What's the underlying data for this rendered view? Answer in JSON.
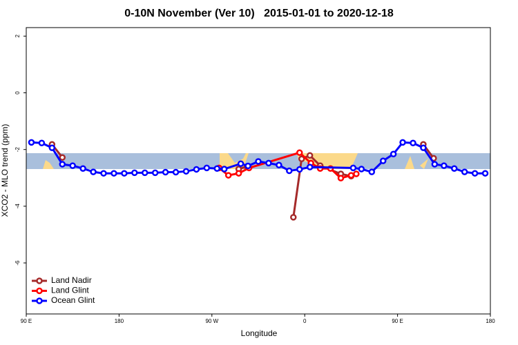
{
  "chart_data": {
    "type": "line",
    "title": "0-10N November (Ver 10)   2015-01-01 to 2020-12-18",
    "x_label": "Longitude",
    "y_label": "XCO2 - MLO trend (ppm)",
    "xlim": [
      90,
      540
    ],
    "xticks": [
      {
        "value": 90,
        "label": "90 E"
      },
      {
        "value": 180,
        "label": "180"
      },
      {
        "value": 270,
        "label": "90 W"
      },
      {
        "value": 360,
        "label": "0"
      },
      {
        "value": 450,
        "label": "90 E"
      },
      {
        "value": 540,
        "label": "180"
      }
    ],
    "ylim": [
      -7.8,
      2.3
    ],
    "yticks": [
      2,
      0,
      -2,
      -4,
      -6
    ],
    "legend": "bottom-left",
    "series": [
      {
        "name": "Land Nadir",
        "color": "#a52a2a",
        "x": [
          115,
          125,
          200,
          296,
          304,
          330,
          349,
          357,
          365,
          375,
          395,
          405,
          440,
          475,
          485
        ],
        "values": [
          -1.82,
          -2.28,
          null,
          -2.69,
          -2.6,
          null,
          -4.39,
          -2.33,
          -2.21,
          -2.57,
          -2.86,
          -2.94,
          null,
          -1.82,
          -2.31
        ]
      },
      {
        "name": "Land Glint",
        "color": "#ff0000",
        "x": [
          277,
          286,
          296,
          306,
          355,
          366,
          375,
          385,
          395,
          405,
          410
        ],
        "values": [
          -2.65,
          -2.91,
          -2.84,
          -2.65,
          -2.11,
          -2.48,
          -2.67,
          -2.67,
          -3.01,
          -2.91,
          -2.86
        ]
      },
      {
        "name": "Ocean Glint",
        "color": "#0000ff",
        "x": [
          95,
          105,
          115,
          125,
          135,
          145,
          155,
          165,
          175,
          185,
          195,
          205,
          215,
          225,
          235,
          245,
          255,
          265,
          275,
          282,
          298,
          305,
          315,
          325,
          335,
          345,
          355,
          365,
          407,
          415,
          425,
          436,
          446,
          455,
          465,
          475,
          486,
          495,
          505,
          515,
          525,
          535
        ],
        "values": [
          -1.75,
          -1.77,
          -1.94,
          -2.52,
          -2.57,
          -2.67,
          -2.79,
          -2.84,
          -2.84,
          -2.84,
          -2.82,
          -2.82,
          -2.82,
          -2.8,
          -2.8,
          -2.77,
          -2.7,
          -2.65,
          -2.67,
          -2.69,
          -2.5,
          -2.58,
          -2.42,
          -2.48,
          -2.55,
          -2.75,
          -2.7,
          -2.62,
          -2.65,
          -2.69,
          -2.79,
          -2.4,
          -2.16,
          -1.75,
          -1.77,
          -1.94,
          -2.52,
          -2.57,
          -2.67,
          -2.79,
          -2.84,
          -2.84
        ]
      }
    ]
  }
}
